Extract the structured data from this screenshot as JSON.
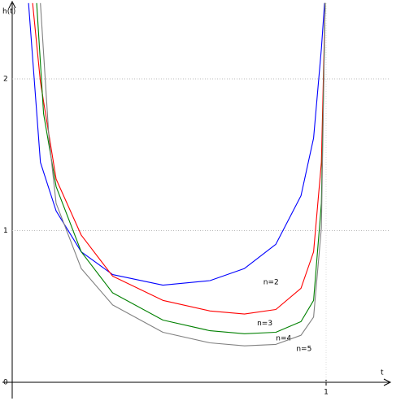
{
  "chart_data": {
    "type": "line",
    "x_label": "t",
    "y_label": "h(t)",
    "xlim": [
      0,
      1.2
    ],
    "ylim": [
      0,
      2.5
    ],
    "xticks": [
      1
    ],
    "yticks": [
      0,
      1,
      2
    ],
    "grid": true,
    "series": [
      {
        "name": "n=2",
        "color": "#0000ff",
        "x": [
          0.052,
          0.09,
          0.14,
          0.22,
          0.32,
          0.48,
          0.63,
          0.74,
          0.84,
          0.92,
          0.96,
          0.985,
          0.995
        ],
        "values": [
          2.5,
          1.45,
          1.13,
          0.86,
          0.71,
          0.64,
          0.67,
          0.75,
          0.91,
          1.23,
          1.61,
          2.2,
          2.5
        ]
      },
      {
        "name": "n=3",
        "color": "#ff0000",
        "x": [
          0.065,
          0.09,
          0.14,
          0.22,
          0.32,
          0.48,
          0.63,
          0.74,
          0.84,
          0.92,
          0.96,
          0.985,
          0.997
        ],
        "values": [
          2.5,
          1.98,
          1.34,
          0.97,
          0.7,
          0.54,
          0.47,
          0.45,
          0.48,
          0.62,
          0.86,
          1.45,
          2.5
        ]
      },
      {
        "name": "n=4",
        "color": "#008000",
        "x": [
          0.078,
          0.1,
          0.14,
          0.22,
          0.32,
          0.48,
          0.63,
          0.74,
          0.84,
          0.92,
          0.96,
          0.985,
          0.997
        ],
        "values": [
          2.5,
          1.77,
          1.29,
          0.86,
          0.59,
          0.41,
          0.34,
          0.32,
          0.33,
          0.4,
          0.54,
          1.18,
          2.5
        ]
      },
      {
        "name": "n=5",
        "color": "#808080",
        "x": [
          0.09,
          0.117,
          0.14,
          0.22,
          0.32,
          0.48,
          0.63,
          0.74,
          0.84,
          0.92,
          0.96,
          0.985,
          0.997
        ],
        "values": [
          2.5,
          1.61,
          1.18,
          0.75,
          0.51,
          0.33,
          0.26,
          0.24,
          0.25,
          0.31,
          0.43,
          1.02,
          2.5
        ]
      }
    ]
  }
}
